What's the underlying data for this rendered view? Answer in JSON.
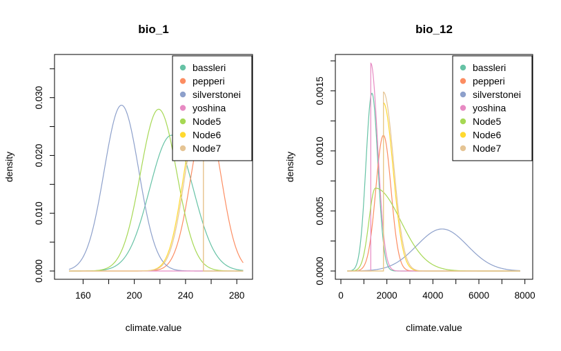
{
  "chart_data": [
    {
      "type": "line",
      "title": "bio_1",
      "xlabel": "climate.value",
      "ylabel": "density",
      "xlim": [
        142,
        288
      ],
      "ylim": [
        0,
        0.037
      ],
      "xticks": [
        160,
        200,
        240,
        280
      ],
      "yticks": [
        0.0,
        0.01,
        0.02,
        0.03
      ],
      "ytick_labels": [
        "0.000",
        "0.010",
        "0.020",
        "0.030"
      ],
      "xtick_labels": [
        "160",
        "200",
        "240",
        "280"
      ],
      "grid": false,
      "legend_position": "top-right",
      "series": [
        {
          "name": "bassleri",
          "color": "#66C2A5",
          "shape": "gaussian",
          "mean": 229,
          "sd": 17,
          "peak": 0.0235,
          "x_min": 149,
          "x_max": 285
        },
        {
          "name": "pepperi",
          "color": "#FC8D62",
          "shape": "gaussian",
          "mean": 256,
          "sd": 12,
          "peak": 0.0265,
          "x_min": 149,
          "x_max": 285
        },
        {
          "name": "silverstonei",
          "color": "#8DA0CB",
          "shape": "gaussian",
          "mean": 190,
          "sd": 13.5,
          "peak": 0.0287,
          "x_min": 149,
          "x_max": 285
        },
        {
          "name": "yoshina",
          "color": "#E78AC3",
          "shape": "spike",
          "x_at": 254,
          "peak": 0.028,
          "x_min": 149,
          "x_max": 285
        },
        {
          "name": "Node5",
          "color": "#A6D854",
          "shape": "gaussian",
          "mean": 219,
          "sd": 14.2,
          "peak": 0.028,
          "x_min": 149,
          "x_max": 285
        },
        {
          "name": "Node6",
          "color": "#FFD92F",
          "shape": "truncated",
          "mean": 249,
          "sd": 11,
          "peak": 0.026,
          "cutoff": 254,
          "x_min": 149,
          "x_max": 285
        },
        {
          "name": "Node7",
          "color": "#E5C494",
          "shape": "truncated",
          "mean": 250,
          "sd": 11,
          "peak": 0.026,
          "cutoff": 254,
          "x_min": 149,
          "x_max": 285
        }
      ]
    },
    {
      "type": "line",
      "title": "bio_12",
      "xlabel": "climate.value",
      "ylabel": "density",
      "xlim": [
        0,
        8100
      ],
      "ylim": [
        0,
        0.00178
      ],
      "xticks": [
        0,
        2000,
        4000,
        6000,
        8000
      ],
      "yticks": [
        0.0,
        0.0005,
        0.001,
        0.0015
      ],
      "ytick_labels": [
        "0.0000",
        "0.0005",
        "0.0010",
        "0.0015"
      ],
      "xtick_labels": [
        "0",
        "2000",
        "4000",
        "6000",
        "8000"
      ],
      "grid": false,
      "legend_position": "top-right",
      "series": [
        {
          "name": "bassleri",
          "color": "#66C2A5",
          "shape": "gaussian",
          "mean": 1350,
          "sd": 260,
          "peak": 0.00148,
          "x_min": 280,
          "x_max": 7800
        },
        {
          "name": "pepperi",
          "color": "#FC8D62",
          "shape": "gaussian",
          "mean": 1850,
          "sd": 330,
          "peak": 0.00113,
          "x_min": 280,
          "x_max": 7800
        },
        {
          "name": "silverstonei",
          "color": "#8DA0CB",
          "shape": "gaussian",
          "mean": 4400,
          "sd": 1100,
          "peak": 0.00035,
          "x_min": 280,
          "x_max": 7800
        },
        {
          "name": "yoshina",
          "color": "#E78AC3",
          "shape": "truncated-left",
          "mean": 1300,
          "sd": 300,
          "peak": 0.00173,
          "cutoff": 1300,
          "x_min": 280,
          "x_max": 7800
        },
        {
          "name": "Node5",
          "color": "#A6D854",
          "shape": "skew",
          "mode": 1500,
          "sd_left": 280,
          "sd_right": 1100,
          "peak": 0.00069,
          "x_min": 280,
          "x_max": 7800
        },
        {
          "name": "Node6",
          "color": "#FFD92F",
          "shape": "truncated-left",
          "mean": 1850,
          "sd": 420,
          "peak": 0.0014,
          "cutoff": 1850,
          "x_min": 280,
          "x_max": 7800
        },
        {
          "name": "Node7",
          "color": "#E5C494",
          "shape": "truncated-left",
          "mean": 1850,
          "sd": 440,
          "peak": 0.00149,
          "cutoff": 1850,
          "x_min": 280,
          "x_max": 7800
        }
      ]
    }
  ]
}
